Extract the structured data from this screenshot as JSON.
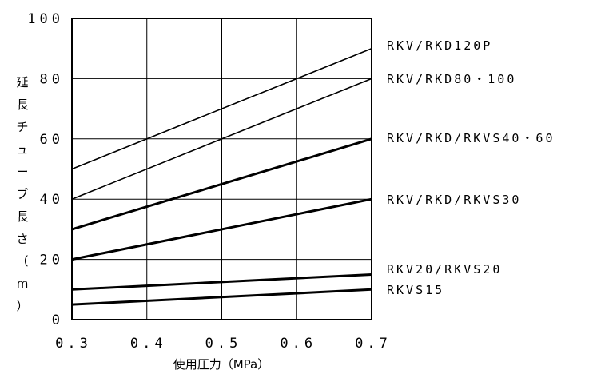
{
  "chart_data": {
    "type": "line",
    "xlabel": "使用圧力（MPa）",
    "ylabel": "延長チューブ長さ（m）",
    "x_ticks": [
      "0.3",
      "0.4",
      "0.5",
      "0.6",
      "0.7"
    ],
    "y_ticks": [
      "0",
      "20",
      "40",
      "60",
      "80",
      "100"
    ],
    "xlim": [
      0.3,
      0.7
    ],
    "ylim": [
      0,
      100
    ],
    "grid": true,
    "series": [
      {
        "name": "RKV/RKD120P",
        "x": [
          0.3,
          0.7
        ],
        "y": [
          50,
          90
        ],
        "weight": "thin"
      },
      {
        "name": "RKV/RKD80・100",
        "x": [
          0.3,
          0.7
        ],
        "y": [
          40,
          80
        ],
        "weight": "thin"
      },
      {
        "name": "RKV/RKD/RKVS40・60",
        "x": [
          0.3,
          0.7
        ],
        "y": [
          30,
          60
        ],
        "weight": "bold"
      },
      {
        "name": "RKV/RKD/RKVS30",
        "x": [
          0.3,
          0.7
        ],
        "y": [
          20,
          40
        ],
        "weight": "bold"
      },
      {
        "name": "RKV20/RKVS20",
        "x": [
          0.3,
          0.7
        ],
        "y": [
          10,
          15
        ],
        "weight": "bold"
      },
      {
        "name": "RKVS15",
        "x": [
          0.3,
          0.7
        ],
        "y": [
          5,
          10
        ],
        "weight": "bold"
      }
    ]
  }
}
